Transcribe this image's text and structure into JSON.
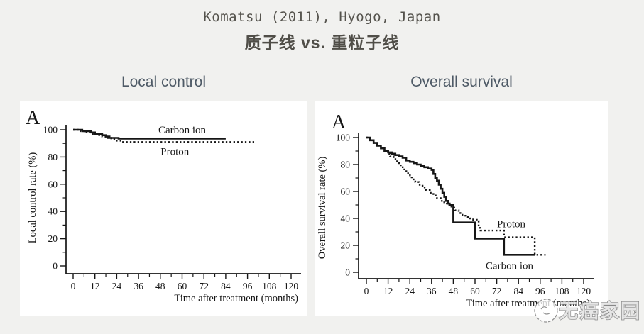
{
  "header": {
    "line1": "Komatsu (2011), Hyogo, Japan",
    "line2": "质子线 vs. 重粒子线"
  },
  "section_titles": [
    "Local control",
    "Overall survival"
  ],
  "watermark": {
    "text": "无癌家园",
    "logo": "circle-logo"
  },
  "colors": {
    "page_bg": "#f1f1ef",
    "panel_bg": "#ffffff",
    "title_text": "#54524c",
    "section_title_text": "#4e5a66",
    "chart_ink": "#161616",
    "watermark_outline": "#7f7f7f"
  },
  "chart_data": [
    {
      "type": "line",
      "variant": "kaplan-meier-step",
      "panel_label": "A",
      "title": "Local control",
      "xlabel": "Time after treatment (months)",
      "ylabel": "Local control rate (%)",
      "xlim": [
        0,
        120
      ],
      "ylim": [
        0,
        100
      ],
      "xticks": [
        0,
        12,
        24,
        36,
        48,
        60,
        72,
        84,
        96,
        108,
        120
      ],
      "yticks": [
        0,
        20,
        40,
        60,
        80,
        100
      ],
      "minor_x_step": 6,
      "minor_y_step": 10,
      "grid": false,
      "legend_position": "inline-labels",
      "series": [
        {
          "name": "Carbon ion",
          "style": "solid",
          "label_xy": [
            60,
            100
          ],
          "points": [
            [
              0,
              100
            ],
            [
              3,
              100
            ],
            [
              5,
              99
            ],
            [
              8,
              99
            ],
            [
              10,
              98
            ],
            [
              12,
              97
            ],
            [
              14,
              97
            ],
            [
              16,
              96
            ],
            [
              18,
              95
            ],
            [
              20,
              94
            ],
            [
              22,
              94
            ],
            [
              25,
              93.5
            ],
            [
              84,
              93.5
            ]
          ]
        },
        {
          "name": "Proton",
          "style": "dotted",
          "label_xy": [
            56,
            84
          ],
          "points": [
            [
              0,
              100
            ],
            [
              4,
              99
            ],
            [
              7,
              98
            ],
            [
              10,
              97
            ],
            [
              13,
              96
            ],
            [
              16,
              95
            ],
            [
              18,
              94
            ],
            [
              21,
              93
            ],
            [
              24,
              92
            ],
            [
              27,
              91
            ],
            [
              100,
              91
            ]
          ]
        }
      ]
    },
    {
      "type": "line",
      "variant": "kaplan-meier-step",
      "panel_label": "A",
      "title": "Overall survival",
      "xlabel": "Time after treatment (months)",
      "ylabel": "Overall survival rate (%)",
      "xlim": [
        0,
        120
      ],
      "ylim": [
        0,
        100
      ],
      "xticks": [
        0,
        12,
        24,
        36,
        48,
        60,
        72,
        84,
        96,
        108,
        120
      ],
      "yticks": [
        0,
        20,
        40,
        60,
        80,
        100
      ],
      "minor_x_step": 6,
      "minor_y_step": 10,
      "grid": false,
      "legend_position": "inline-labels",
      "series": [
        {
          "name": "Proton",
          "style": "dotted",
          "label_xy": [
            80,
            36
          ],
          "points": [
            [
              0,
              100
            ],
            [
              2,
              98
            ],
            [
              4,
              96
            ],
            [
              6,
              94
            ],
            [
              8,
              92
            ],
            [
              10,
              90
            ],
            [
              12,
              88
            ],
            [
              13,
              86
            ],
            [
              15,
              84
            ],
            [
              17,
              81
            ],
            [
              19,
              78
            ],
            [
              21,
              75
            ],
            [
              23,
              72
            ],
            [
              25,
              69
            ],
            [
              27,
              67
            ],
            [
              29,
              65
            ],
            [
              31,
              63
            ],
            [
              33,
              61
            ],
            [
              35,
              59
            ],
            [
              37,
              57
            ],
            [
              39,
              55
            ],
            [
              41,
              53
            ],
            [
              43,
              51
            ],
            [
              45,
              50
            ],
            [
              47,
              48
            ],
            [
              49,
              46
            ],
            [
              51,
              44
            ],
            [
              53,
              42
            ],
            [
              55,
              41
            ],
            [
              57,
              40
            ],
            [
              59,
              39
            ],
            [
              61,
              38
            ],
            [
              62,
              33
            ],
            [
              63,
              31
            ],
            [
              75,
              31
            ],
            [
              76,
              26
            ],
            [
              92,
              26
            ],
            [
              93,
              13
            ],
            [
              99,
              13
            ]
          ]
        },
        {
          "name": "Carbon ion",
          "style": "solid",
          "label_xy": [
            79,
            5
          ],
          "points": [
            [
              0,
              100
            ],
            [
              2,
              98
            ],
            [
              4,
              96
            ],
            [
              6,
              94
            ],
            [
              8,
              92
            ],
            [
              10,
              90
            ],
            [
              12,
              89
            ],
            [
              14,
              88
            ],
            [
              16,
              87
            ],
            [
              18,
              86
            ],
            [
              20,
              85
            ],
            [
              22,
              83
            ],
            [
              24,
              82
            ],
            [
              26,
              81
            ],
            [
              28,
              80
            ],
            [
              30,
              79
            ],
            [
              32,
              78
            ],
            [
              34,
              77
            ],
            [
              36,
              76
            ],
            [
              37,
              73
            ],
            [
              38,
              70
            ],
            [
              39,
              68
            ],
            [
              40,
              65
            ],
            [
              41,
              62
            ],
            [
              42,
              59
            ],
            [
              43,
              56
            ],
            [
              44,
              53
            ],
            [
              45,
              51
            ],
            [
              46,
              50
            ],
            [
              48,
              49
            ],
            [
              48,
              37
            ],
            [
              60,
              37
            ],
            [
              60,
              25
            ],
            [
              76,
              25
            ],
            [
              76,
              13
            ],
            [
              93,
              13
            ]
          ]
        }
      ]
    }
  ]
}
